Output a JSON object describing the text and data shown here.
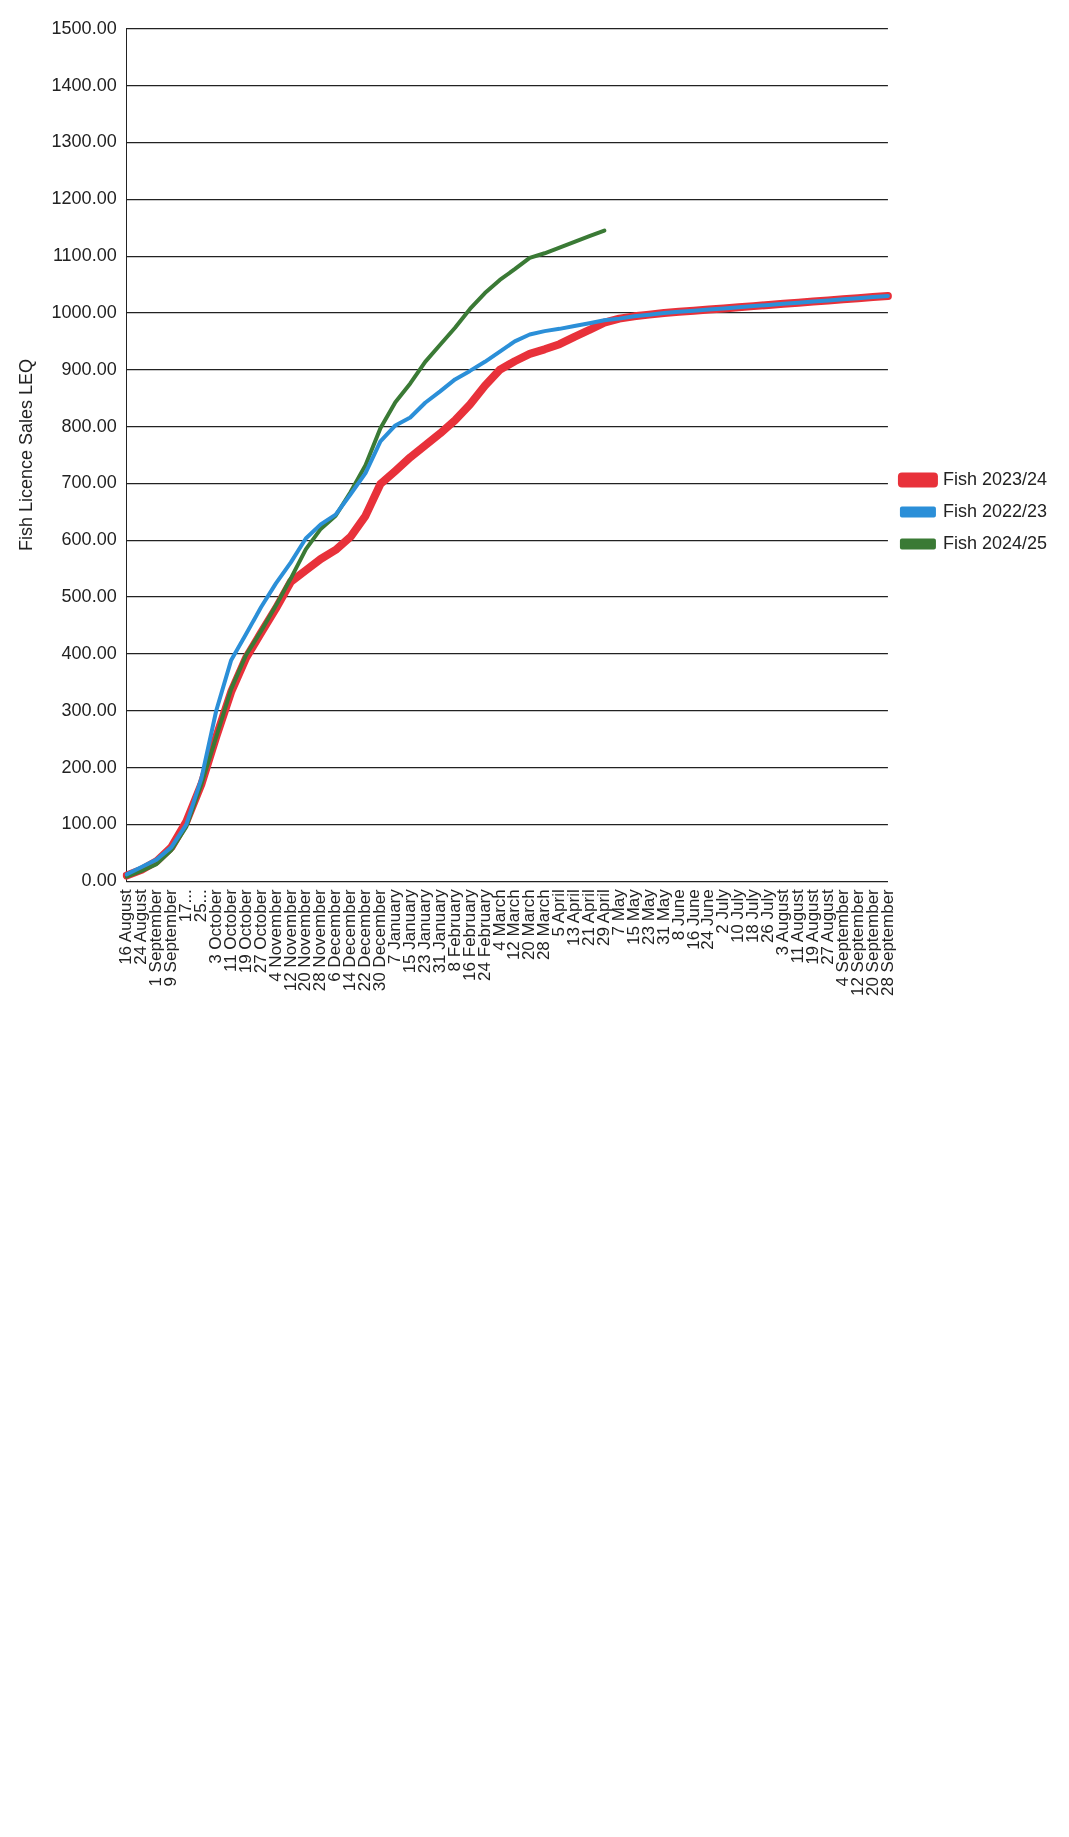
{
  "chart_data": {
    "type": "line",
    "ylabel": "Fish Licence Sales LEQ",
    "categories": [
      "16 August",
      "24 August",
      "1 September",
      "9 September",
      "17...",
      "25...",
      "3 October",
      "11 October",
      "19 October",
      "27 October",
      "4 November",
      "12 November",
      "20 November",
      "28 November",
      "6 December",
      "14 December",
      "22 December",
      "30 December",
      "7 January",
      "15 January",
      "23 January",
      "31 January",
      "8 February",
      "16 February",
      "24 February",
      "4 March",
      "12 March",
      "20 March",
      "28 March",
      "5 April",
      "13 April",
      "21 April",
      "29 April",
      "7 May",
      "15 May",
      "23 May",
      "31 May",
      "8 June",
      "16 June",
      "24 June",
      "2 July",
      "10 July",
      "18 July",
      "26 July",
      "3 August",
      "11 August",
      "19 August",
      "27 August",
      "4 September",
      "12 September",
      "20 September",
      "28 September"
    ],
    "series": [
      {
        "name": "Fish 2023/24",
        "color": "#e8313a",
        "values": [
          10,
          20,
          35,
          60,
          105,
          170,
          254,
          333,
          393,
          437,
          480,
          527,
          547,
          567,
          583,
          606,
          643,
          699,
          722,
          746,
          767,
          788,
          811,
          839,
          872,
          900,
          915,
          928,
          936,
          945,
          958,
          970,
          983,
          990,
          994,
          997,
          1000,
          1002,
          1004,
          1006,
          1008,
          1010,
          1012,
          1014,
          1016,
          1018,
          1020,
          1022,
          1024,
          1026,
          1028,
          1030
        ]
      },
      {
        "name": "Fish 2022/23",
        "color": "#2b8fd8",
        "values": [
          12,
          25,
          38,
          60,
          100,
          180,
          300,
          389,
          435,
          482,
          524,
          561,
          603,
          628,
          645,
          681,
          718,
          774,
          802,
          816,
          842,
          862,
          883,
          898,
          914,
          932,
          950,
          962,
          968,
          972,
          977,
          982,
          987,
          990,
          994,
          997,
          1000,
          1002,
          1004,
          1006,
          1008,
          1010,
          1012,
          1014,
          1016,
          1018,
          1020,
          1022,
          1024,
          1026,
          1028,
          1030
        ]
      },
      {
        "name": "Fish 2024/25",
        "color": "#3a7a35",
        "values": [
          8,
          18,
          30,
          55,
          96,
          170,
          254,
          338,
          398,
          440,
          485,
          533,
          584,
          620,
          643,
          685,
          732,
          797,
          843,
          876,
          914,
          944,
          974,
          1007,
          1035,
          1058,
          1077,
          1097,
          1105,
          1115,
          1125,
          1135,
          1145,
          null,
          null,
          null,
          null,
          null,
          null,
          null,
          null,
          null,
          null,
          null,
          null,
          null,
          null,
          null,
          null,
          null,
          null,
          null
        ]
      }
    ],
    "ylim": [
      0,
      1500
    ],
    "yticks": [
      {
        "value": 0,
        "label": "0.00"
      },
      {
        "value": 100,
        "label": "100.00"
      },
      {
        "value": 200,
        "label": "200.00"
      },
      {
        "value": 300,
        "label": "300.00"
      },
      {
        "value": 400,
        "label": "400.00"
      },
      {
        "value": 500,
        "label": "500.00"
      },
      {
        "value": 600,
        "label": "600.00"
      },
      {
        "value": 700,
        "label": "700.00"
      },
      {
        "value": 800,
        "label": "800.00"
      },
      {
        "value": 900,
        "label": "900.00"
      },
      {
        "value": 1000,
        "label": "1000.00"
      },
      {
        "value": 1100,
        "label": "1100.00"
      },
      {
        "value": 1200,
        "label": "1200.00"
      },
      {
        "value": 1300,
        "label": "1300.00"
      },
      {
        "value": 1400,
        "label": "1400.00"
      },
      {
        "value": 1500,
        "label": "1500.00"
      }
    ],
    "grid": "y",
    "legend": "right",
    "marker": "none",
    "line_style": "solid"
  }
}
